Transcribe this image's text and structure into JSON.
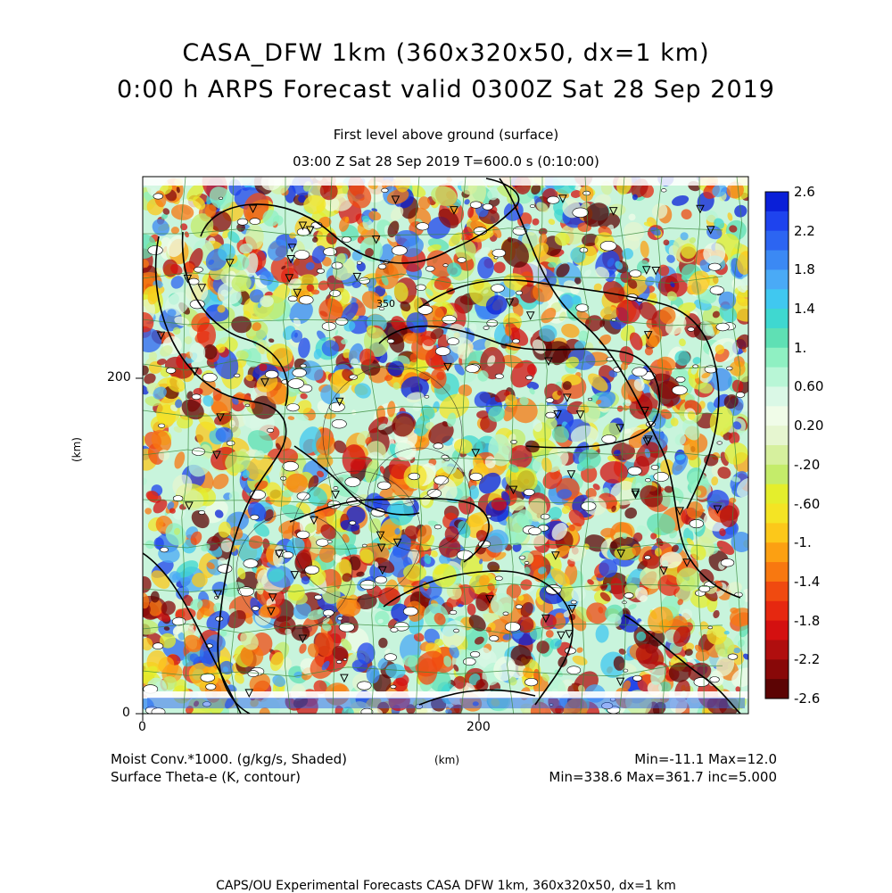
{
  "header": {
    "title_line1": "CASA_DFW 1km (360x320x50, dx=1 km)",
    "title_line2": "0:00 h ARPS Forecast valid 0300Z Sat 28 Sep 2019",
    "subtitle_line1": "First level above ground (surface)",
    "subtitle_line2": "03:00 Z Sat 28 Sep 2019    T=600.0 s (0:10:00)"
  },
  "axes": {
    "x_ticks": [
      "0",
      "200"
    ],
    "y_ticks": [
      "0",
      "200"
    ],
    "x_label": "(km)",
    "y_label": "(km)",
    "contour_label": "350"
  },
  "colorbar": {
    "labels": [
      "2.6",
      "2.2",
      "1.8",
      "1.4",
      "1.",
      "0.60",
      "0.20",
      "-.20",
      "-.60",
      "-1.",
      "-1.4",
      "-1.8",
      "-2.2",
      "-2.6"
    ],
    "colors": [
      "#0a1fd8",
      "#1e43ee",
      "#2c65f2",
      "#3b89f4",
      "#4aaaf6",
      "#40c8f0",
      "#3fd8d0",
      "#5fe0b4",
      "#8ff0c2",
      "#b8f6d6",
      "#daf8e6",
      "#f0fce8",
      "#e6f6d0",
      "#d6f09e",
      "#c4ec6a",
      "#e4ee2c",
      "#f4e424",
      "#fcc81a",
      "#fca012",
      "#f87810",
      "#f04a10",
      "#e62810",
      "#d41010",
      "#b00e0e",
      "#880808",
      "#5c0404"
    ]
  },
  "footer": {
    "left_line1": "Moist Conv.*1000. (g/kg/s, Shaded)",
    "left_line2": "Surface Theta-e (K, contour)",
    "center": "(km)",
    "right_line1": "Min=-11.1 Max=12.0",
    "right_line2": "Min=338.6 Max=361.7 inc=5.000",
    "bottom": "CAPS/OU Experimental Forecasts  CASA DFW 1km, 360x320x50, dx=1 km"
  },
  "field": {
    "min": -11.1,
    "max": 12.0,
    "theta_min": 338.6,
    "theta_max": 361.7,
    "theta_inc": 5.0
  }
}
